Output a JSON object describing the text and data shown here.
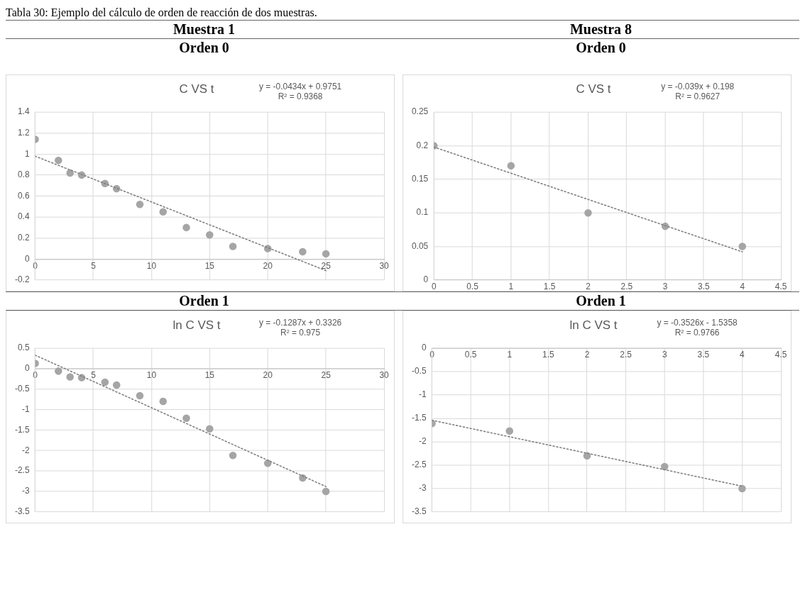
{
  "chart_data": [
    {
      "type": "scatter",
      "title": "C VS t",
      "subtitle": "Orden 0",
      "annotations": [
        "Tabla 30: Ejemplo del cálculo de orden de reacción de dos muestras.",
        "Muestra 1",
        "y = -0.0434x + 0.9751",
        "R² = 0.9368"
      ],
      "xlim": [
        0,
        30
      ],
      "xticks": [
        0,
        5,
        10,
        15,
        20,
        25,
        30
      ],
      "ylim": [
        -0.2,
        1.4
      ],
      "yticks": [
        -0.2,
        0,
        0.2,
        0.4,
        0.6,
        0.8,
        1,
        1.2,
        1.4
      ],
      "grid": true,
      "marker": "circle",
      "series": [
        {
          "color": "#a5a5a5",
          "x": [
            0,
            2,
            3,
            4,
            6,
            7,
            9,
            11,
            13,
            15,
            17,
            20,
            23,
            25
          ],
          "values": [
            1.14,
            0.94,
            0.82,
            0.8,
            0.72,
            0.67,
            0.52,
            0.45,
            0.3,
            0.23,
            0.12,
            0.1,
            0.07,
            0.05
          ]
        },
        {
          "type": "line",
          "color": "#808080",
          "line_style": "dotted",
          "marker": "none",
          "x": [
            0,
            25
          ],
          "values": [
            0.98,
            -0.11
          ]
        }
      ]
    },
    {
      "type": "scatter",
      "title": "C VS t",
      "subtitle": "Orden 0",
      "annotations": [
        "Muestra 8",
        "y = -0.039x + 0.198",
        "R² = 0.9627"
      ],
      "xlim": [
        0,
        4.5
      ],
      "xticks": [
        0,
        0.5,
        1,
        1.5,
        2,
        2.5,
        3,
        3.5,
        4,
        4.5
      ],
      "ylim": [
        0,
        0.25
      ],
      "yticks": [
        0,
        0.05,
        0.1,
        0.15,
        0.2,
        0.25
      ],
      "grid": true,
      "marker": "circle",
      "series": [
        {
          "color": "#a5a5a5",
          "x": [
            0,
            1,
            2,
            3,
            4
          ],
          "values": [
            0.2,
            0.17,
            0.1,
            0.08,
            0.05
          ]
        },
        {
          "type": "line",
          "color": "#808080",
          "line_style": "dotted",
          "marker": "none",
          "x": [
            0,
            4
          ],
          "values": [
            0.198,
            0.042
          ]
        }
      ]
    },
    {
      "type": "scatter",
      "title": "ln C VS t",
      "subtitle": "Orden 1",
      "annotations": [
        "y = -0.1287x + 0.3326",
        "R² = 0.975"
      ],
      "xlim": [
        0,
        30
      ],
      "xticks": [
        0,
        5,
        10,
        15,
        20,
        25,
        30
      ],
      "ylim": [
        -3.5,
        0.5
      ],
      "yticks": [
        -3.5,
        -3,
        -2.5,
        -2,
        -1.5,
        -1,
        -0.5,
        0,
        0.5
      ],
      "grid": true,
      "marker": "circle",
      "series": [
        {
          "color": "#a5a5a5",
          "x": [
            0,
            2,
            3,
            4,
            6,
            7,
            9,
            11,
            13,
            15,
            17,
            20,
            23,
            25
          ],
          "values": [
            0.13,
            -0.06,
            -0.2,
            -0.22,
            -0.33,
            -0.4,
            -0.66,
            -0.8,
            -1.21,
            -1.47,
            -2.12,
            -2.31,
            -2.67,
            -3.0
          ]
        },
        {
          "type": "line",
          "color": "#808080",
          "line_style": "dotted",
          "marker": "none",
          "x": [
            0,
            25
          ],
          "values": [
            0.33,
            -2.88
          ]
        }
      ]
    },
    {
      "type": "scatter",
      "title": "ln C VS t",
      "subtitle": "Orden 1",
      "annotations": [
        "y = -0.3526x - 1.5358",
        "R² = 0.9766"
      ],
      "xlim": [
        0,
        4.5
      ],
      "xticks": [
        0,
        0.5,
        1,
        1.5,
        2,
        2.5,
        3,
        3.5,
        4,
        4.5
      ],
      "ylim": [
        -3.5,
        0
      ],
      "yticks": [
        -3.5,
        -3,
        -2.5,
        -2,
        -1.5,
        -1,
        -0.5,
        0
      ],
      "grid": true,
      "marker": "circle",
      "series": [
        {
          "color": "#a5a5a5",
          "x": [
            0,
            1,
            2,
            3,
            4
          ],
          "values": [
            -1.61,
            -1.77,
            -2.3,
            -2.53,
            -3.0
          ]
        },
        {
          "type": "line",
          "color": "#808080",
          "line_style": "dotted",
          "marker": "none",
          "x": [
            0,
            4
          ],
          "values": [
            -1.54,
            -2.95
          ]
        }
      ]
    }
  ]
}
